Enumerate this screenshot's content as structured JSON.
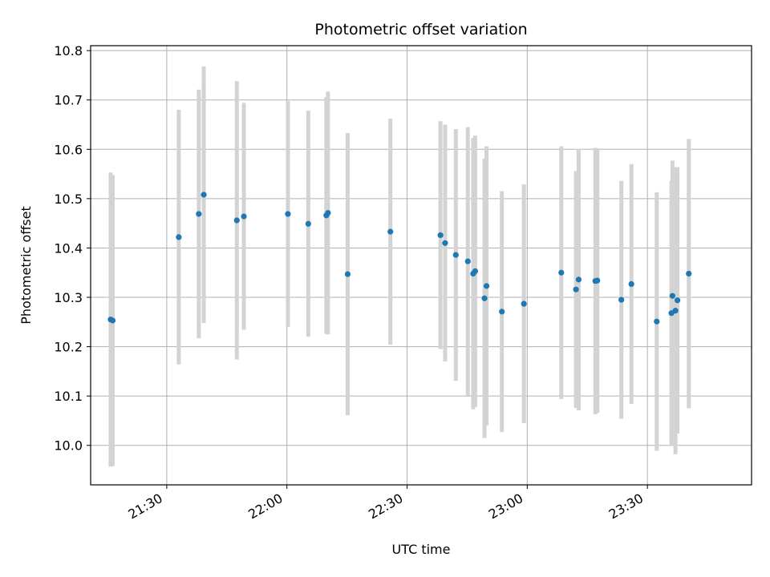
{
  "chart_data": {
    "type": "scatter",
    "title": "Photometric offset variation",
    "xlabel": "UTC time",
    "ylabel": "Photometric offset",
    "xlim": [
      "21:11",
      "23:56"
    ],
    "ylim": [
      9.92,
      10.81
    ],
    "grid": true,
    "x_ticks": [
      "21:30",
      "22:00",
      "22:30",
      "23:00",
      "23:30"
    ],
    "y_ticks": [
      "10.0",
      "10.1",
      "10.2",
      "10.3",
      "10.4",
      "10.5",
      "10.6",
      "10.7",
      "10.8"
    ],
    "colors": {
      "point": "#1f77b4",
      "errorbar": "#d3d3d3",
      "grid": "#b0b0b0"
    },
    "series": [
      {
        "x": [
          "21:16:00",
          "21:16:30",
          "21:33:00",
          "21:38:00",
          "21:39:15",
          "21:47:30",
          "21:49:15",
          "22:00:15",
          "22:05:20",
          "22:09:50",
          "22:10:15",
          "22:15:10",
          "22:25:50",
          "22:38:20",
          "22:39:30",
          "22:42:10",
          "22:45:10",
          "22:46:30",
          "22:47:00",
          "22:49:20",
          "22:49:50",
          "22:53:40",
          "22:59:10",
          "23:08:30",
          "23:12:10",
          "23:12:50",
          "23:17:00",
          "23:17:30",
          "23:23:30",
          "23:26:00",
          "23:32:20",
          "23:36:00",
          "23:36:15",
          "23:37:00",
          "23:37:30",
          "23:40:20"
        ],
        "y": [
          10.255,
          10.253,
          10.422,
          10.469,
          10.508,
          10.456,
          10.464,
          10.469,
          10.449,
          10.466,
          10.471,
          10.347,
          10.433,
          10.426,
          10.41,
          10.386,
          10.373,
          10.348,
          10.353,
          10.298,
          10.323,
          10.271,
          10.287,
          10.35,
          10.316,
          10.336,
          10.333,
          10.334,
          10.295,
          10.327,
          10.251,
          10.268,
          10.303,
          10.273,
          10.294,
          10.348
        ],
        "yerr": [
          0.298,
          0.295,
          0.258,
          0.252,
          0.26,
          0.282,
          0.23,
          0.229,
          0.229,
          0.24,
          0.246,
          0.286,
          0.229,
          0.231,
          0.24,
          0.255,
          0.272,
          0.275,
          0.275,
          0.283,
          0.283,
          0.244,
          0.242,
          0.256,
          0.24,
          0.265,
          0.27,
          0.268,
          0.241,
          0.243,
          0.262,
          0.268,
          0.274,
          0.291,
          0.27,
          0.273
        ]
      }
    ]
  }
}
